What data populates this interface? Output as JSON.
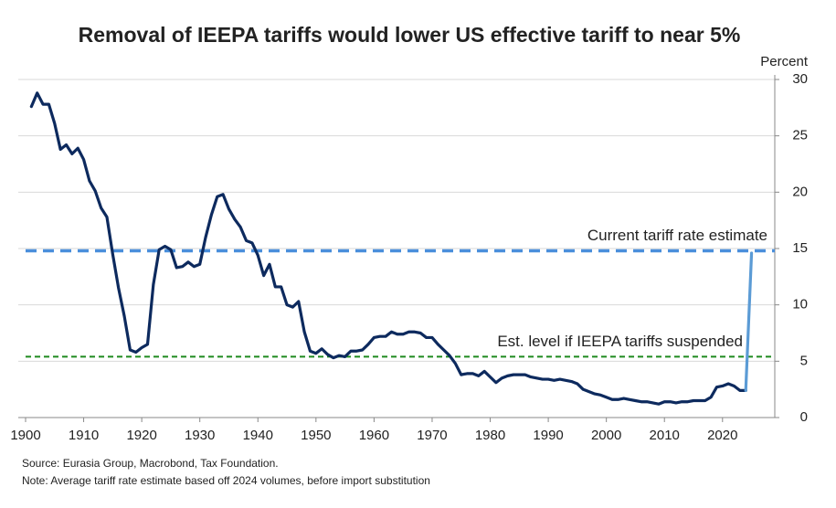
{
  "chart_data": {
    "type": "line",
    "title": "Removal of IEEPA tariffs would lower US effective tariff to near 5%",
    "y_axis_label": "Percent",
    "source": "Source: Eurasia Group, Macrobond, Tax Foundation.",
    "note": "Note: Average tariff rate estimate based off 2024 volumes, before import substitution",
    "xlim": [
      1900,
      2029
    ],
    "xticks": [
      1900,
      1910,
      1920,
      1930,
      1940,
      1950,
      1960,
      1970,
      1980,
      1990,
      2000,
      2010,
      2020
    ],
    "ylim": [
      0,
      30
    ],
    "yticks": [
      0,
      5,
      10,
      15,
      20,
      25,
      30
    ],
    "grid": true,
    "series": [
      {
        "color": "#0d2a5e",
        "x": [
          1901,
          1902,
          1903,
          1904,
          1905,
          1906,
          1907,
          1908,
          1909,
          1910,
          1911,
          1912,
          1913,
          1914,
          1915,
          1916,
          1917,
          1918,
          1919,
          1920,
          1921,
          1922,
          1923,
          1924,
          1925,
          1926,
          1927,
          1928,
          1929,
          1930,
          1931,
          1932,
          1933,
          1934,
          1935,
          1936,
          1937,
          1938,
          1939,
          1940,
          1941,
          1942,
          1943,
          1944,
          1945,
          1946,
          1947,
          1948,
          1949,
          1950,
          1951,
          1952,
          1953,
          1954,
          1955,
          1956,
          1957,
          1958,
          1959,
          1960,
          1961,
          1962,
          1963,
          1964,
          1965,
          1966,
          1967,
          1968,
          1969,
          1970,
          1971,
          1972,
          1973,
          1974,
          1975,
          1976,
          1977,
          1978,
          1979,
          1980,
          1981,
          1982,
          1983,
          1984,
          1985,
          1986,
          1987,
          1988,
          1989,
          1990,
          1991,
          1992,
          1993,
          1994,
          1995,
          1996,
          1997,
          1998,
          1999,
          2000,
          2001,
          2002,
          2003,
          2004,
          2005,
          2006,
          2007,
          2008,
          2009,
          2010,
          2011,
          2012,
          2013,
          2014,
          2015,
          2016,
          2017,
          2018,
          2019,
          2020,
          2021,
          2022,
          2023,
          2024
        ],
        "values": [
          27.6,
          28.8,
          27.8,
          27.8,
          26.1,
          23.8,
          24.2,
          23.4,
          23.9,
          22.9,
          21.0,
          20.1,
          18.6,
          17.8,
          14.5,
          11.5,
          9.0,
          6.0,
          5.8,
          6.2,
          6.5,
          11.8,
          14.9,
          15.2,
          14.9,
          13.3,
          13.4,
          13.8,
          13.4,
          13.6,
          16.0,
          18.0,
          19.6,
          19.8,
          18.5,
          17.6,
          16.9,
          15.7,
          15.5,
          14.4,
          12.6,
          13.6,
          11.6,
          11.6,
          10.0,
          9.8,
          10.3,
          7.6,
          5.9,
          5.7,
          6.1,
          5.6,
          5.3,
          5.5,
          5.4,
          5.9,
          5.9,
          6.0,
          6.5,
          7.1,
          7.2,
          7.2,
          7.6,
          7.4,
          7.4,
          7.6,
          7.6,
          7.5,
          7.1,
          7.1,
          6.5,
          6.0,
          5.5,
          4.8,
          3.8,
          3.9,
          3.9,
          3.7,
          4.1,
          3.6,
          3.1,
          3.5,
          3.7,
          3.8,
          3.8,
          3.8,
          3.6,
          3.5,
          3.4,
          3.4,
          3.3,
          3.4,
          3.3,
          3.2,
          3.0,
          2.5,
          2.3,
          2.1,
          2.0,
          1.8,
          1.6,
          1.6,
          1.7,
          1.6,
          1.5,
          1.4,
          1.4,
          1.3,
          1.2,
          1.4,
          1.4,
          1.3,
          1.4,
          1.4,
          1.5,
          1.5,
          1.5,
          1.8,
          2.7,
          2.8,
          3.0,
          2.8,
          2.4,
          2.4
        ]
      },
      {
        "color": "#5b9bd5",
        "x": [
          2024,
          2025
        ],
        "values": [
          2.4,
          14.6
        ]
      }
    ],
    "reference_lines": [
      {
        "label": "Current tariff rate estimate",
        "value": 14.8,
        "color": "#4a8fdb"
      },
      {
        "label": "Est. level if IEEPA tariffs suspended",
        "value": 5.4,
        "color": "#1e8a1e"
      }
    ]
  }
}
